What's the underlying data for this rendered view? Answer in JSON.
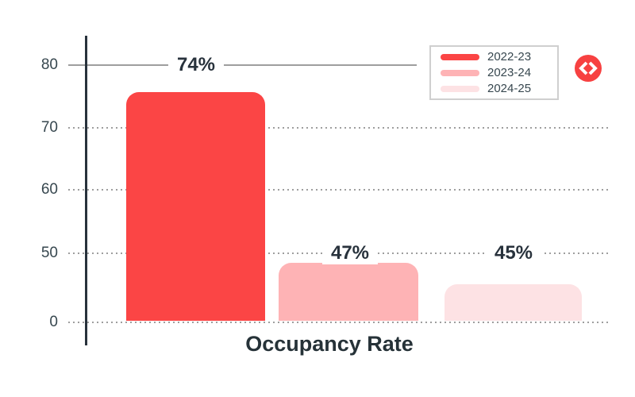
{
  "chart_data": {
    "type": "bar",
    "title": "Occupancy Rate",
    "xlabel": "",
    "ylabel": "",
    "categories": [
      "2022-23",
      "2023-24",
      "2024-25"
    ],
    "values": [
      74,
      47,
      45
    ],
    "value_labels": [
      "74%",
      "47%",
      "45%"
    ],
    "yticks": [
      "80",
      "70",
      "60",
      "50",
      "0"
    ],
    "ylim": [
      0,
      85
    ],
    "grid": "horizontal-dotted",
    "legend_position": "top-right",
    "legend": [
      "2022-23",
      "2023-24",
      "2024-25"
    ],
    "bar_colors": [
      "#fb4545",
      "#feb3b5",
      "#fde2e4"
    ]
  },
  "colors": {
    "axis": "#28323c",
    "grid": "#9e9e9e",
    "title_text": "#263238",
    "value_text": "#28323c",
    "tick_text": "#37474f",
    "legend_border": "#cfcfcf",
    "icon_bg": "#f74141",
    "icon_glyph": "#ffffff",
    "background": "#ffffff"
  },
  "icon": {
    "name": "code-icon",
    "glyph": "<>"
  }
}
